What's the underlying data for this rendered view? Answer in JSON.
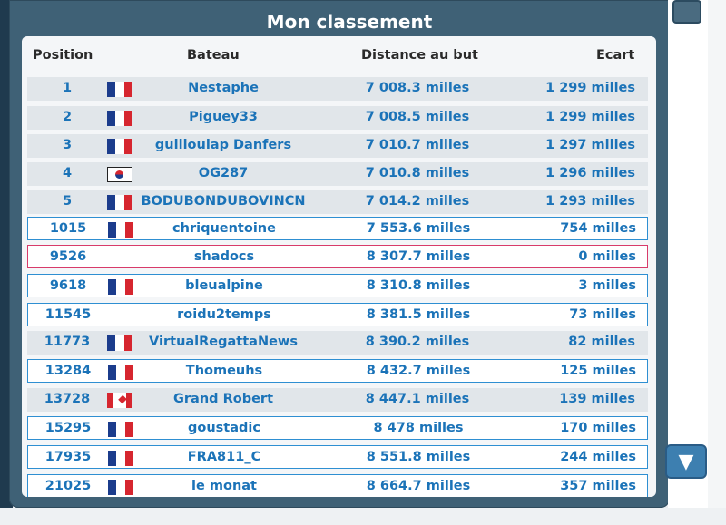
{
  "panel": {
    "title": "Mon classement"
  },
  "headers": {
    "position": "Position",
    "boat": "Bateau",
    "distance": "Distance au but",
    "gap": "Ecart"
  },
  "rows": [
    {
      "position": "1",
      "flag": "fr",
      "boat": "Nestaphe",
      "distance": "7 008.3 milles",
      "gap": "1 299 milles",
      "style": "grey"
    },
    {
      "position": "2",
      "flag": "fr",
      "boat": "Piguey33",
      "distance": "7 008.5 milles",
      "gap": "1 299 milles",
      "style": "grey"
    },
    {
      "position": "3",
      "flag": "fr",
      "boat": "guilloulap Danfers",
      "distance": "7 010.7 milles",
      "gap": "1 297 milles",
      "style": "grey"
    },
    {
      "position": "4",
      "flag": "kr",
      "boat": "OG287",
      "distance": "7 010.8 milles",
      "gap": "1 296 milles",
      "style": "grey"
    },
    {
      "position": "5",
      "flag": "fr",
      "boat": "BODUBONDUBOVINCN",
      "distance": "7 014.2 milles",
      "gap": "1 293 milles",
      "style": "grey"
    },
    {
      "position": "1015",
      "flag": "fr",
      "boat": "chriquentoine",
      "distance": "7 553.6 milles",
      "gap": "754 milles",
      "style": "white"
    },
    {
      "position": "9526",
      "flag": "",
      "boat": "shadocs",
      "distance": "8 307.7 milles",
      "gap": "0 milles",
      "style": "me"
    },
    {
      "position": "9618",
      "flag": "fr",
      "boat": "bleualpine",
      "distance": "8 310.8 milles",
      "gap": "3 milles",
      "style": "white"
    },
    {
      "position": "11545",
      "flag": "",
      "boat": "roidu2temps",
      "distance": "8 381.5 milles",
      "gap": "73 milles",
      "style": "white"
    },
    {
      "position": "11773",
      "flag": "fr",
      "boat": "VirtualRegattaNews",
      "distance": "8 390.2 milles",
      "gap": "82 milles",
      "style": "grey"
    },
    {
      "position": "13284",
      "flag": "fr",
      "boat": "Thomeuhs",
      "distance": "8 432.7 milles",
      "gap": "125 milles",
      "style": "white"
    },
    {
      "position": "13728",
      "flag": "ca",
      "boat": "Grand Robert",
      "distance": "8 447.1 milles",
      "gap": "139 milles",
      "style": "grey"
    },
    {
      "position": "15295",
      "flag": "fr",
      "boat": "goustadic",
      "distance": "8 478 milles",
      "gap": "170 milles",
      "style": "white"
    },
    {
      "position": "17935",
      "flag": "fr",
      "boat": "FRA811_C",
      "distance": "8 551.8 milles",
      "gap": "244 milles",
      "style": "white"
    },
    {
      "position": "21025",
      "flag": "fr",
      "boat": "le monat",
      "distance": "8 664.7 milles",
      "gap": "357 milles",
      "style": "white"
    }
  ],
  "scrollbar": {
    "down_icon": "down-arrow-icon",
    "down_glyph": "▼"
  },
  "colors": {
    "panel": "#3f6176",
    "row_text": "#1b73b8",
    "highlight_border": "#d83b6a",
    "row_border": "#2e8fd2"
  }
}
